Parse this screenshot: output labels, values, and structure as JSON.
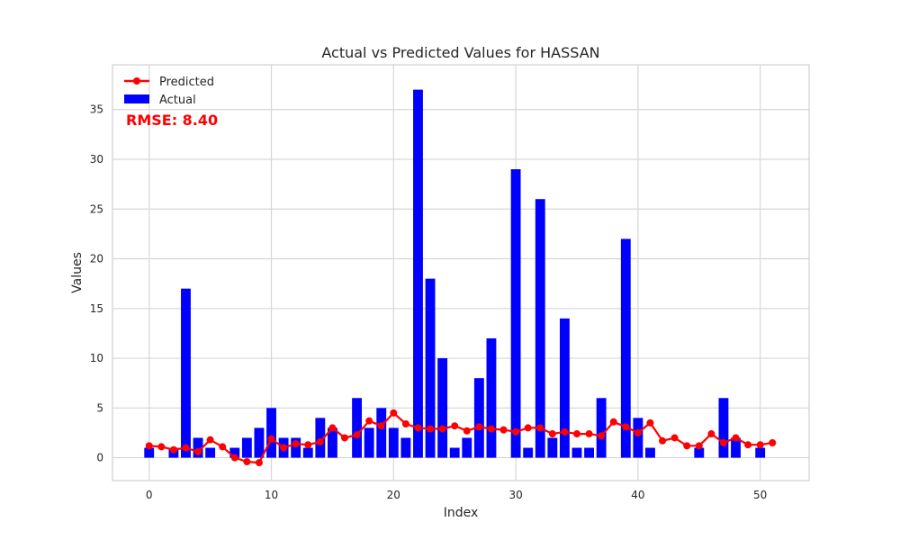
{
  "chart_data": {
    "type": "bar",
    "title": "Actual vs Predicted Values for HASSAN",
    "xlabel": "Index",
    "ylabel": "Values",
    "xlim": [
      -3,
      54
    ],
    "ylim": [
      -2.3,
      39.5
    ],
    "x_ticks": [
      0,
      10,
      20,
      30,
      40,
      50
    ],
    "y_ticks": [
      0,
      5,
      10,
      15,
      20,
      25,
      30,
      35
    ],
    "grid": true,
    "legend_position": "top-left",
    "annotation": "RMSE: 8.40",
    "series": [
      {
        "name": "Actual",
        "kind": "bar",
        "color": "#0000ff",
        "x": [
          0,
          1,
          2,
          3,
          4,
          5,
          6,
          7,
          8,
          9,
          10,
          11,
          12,
          13,
          14,
          15,
          16,
          17,
          18,
          19,
          20,
          21,
          22,
          23,
          24,
          25,
          26,
          27,
          28,
          29,
          30,
          31,
          32,
          33,
          34,
          35,
          36,
          37,
          38,
          39,
          40,
          41,
          42,
          43,
          44,
          45,
          46,
          47,
          48,
          49,
          50,
          51
        ],
        "values": [
          1,
          0,
          1,
          17,
          2,
          1,
          0,
          1,
          2,
          3,
          5,
          2,
          2,
          1,
          4,
          3,
          0,
          6,
          3,
          5,
          3,
          2,
          37,
          18,
          10,
          1,
          2,
          8,
          12,
          0,
          29,
          1,
          26,
          2,
          14,
          1,
          1,
          6,
          0,
          22,
          4,
          1,
          0,
          0,
          0,
          1,
          0,
          6,
          2,
          0,
          1,
          0
        ]
      },
      {
        "name": "Predicted",
        "kind": "line",
        "color": "#ff0000",
        "x": [
          0,
          1,
          2,
          3,
          4,
          5,
          6,
          7,
          8,
          9,
          10,
          11,
          12,
          13,
          14,
          15,
          16,
          17,
          18,
          19,
          20,
          21,
          22,
          23,
          24,
          25,
          26,
          27,
          28,
          29,
          30,
          31,
          32,
          33,
          34,
          35,
          36,
          37,
          38,
          39,
          40,
          41,
          42,
          43,
          44,
          45,
          46,
          47,
          48,
          49,
          50,
          51
        ],
        "values": [
          1.2,
          1.1,
          0.8,
          1.0,
          0.6,
          1.8,
          1.1,
          0.0,
          -0.4,
          -0.5,
          1.9,
          1.0,
          1.4,
          1.3,
          1.6,
          3.0,
          2.0,
          2.3,
          3.7,
          3.2,
          4.5,
          3.4,
          3.0,
          2.9,
          2.9,
          3.2,
          2.7,
          3.1,
          2.9,
          2.8,
          2.6,
          3.0,
          3.0,
          2.4,
          2.6,
          2.4,
          2.4,
          2.2,
          3.6,
          3.1,
          2.5,
          3.5,
          1.7,
          2.0,
          1.2,
          1.2,
          2.4,
          1.5,
          2.0,
          1.3,
          1.3,
          1.5
        ]
      }
    ]
  }
}
